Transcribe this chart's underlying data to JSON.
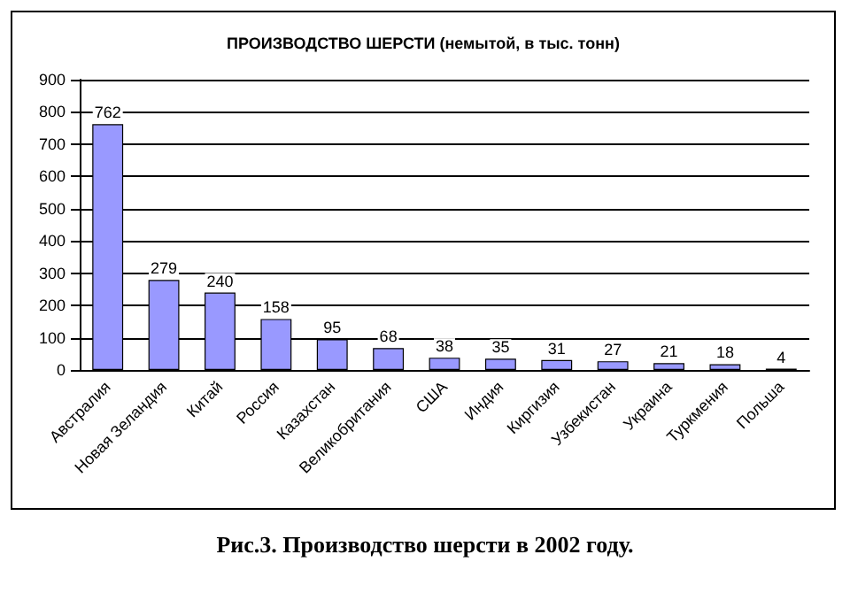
{
  "chart_data": {
    "type": "bar",
    "title": "ПРОИЗВОДСТВО ШЕРСТИ (немытой, в тыс. тонн)",
    "categories": [
      "Австралия",
      "Новая Зеландия",
      "Китай",
      "Россия",
      "Казахстан",
      "Великобритания",
      "США",
      "Индия",
      "Киргизия",
      "Узбекистан",
      "Украина",
      "Туркмения",
      "Польша"
    ],
    "values": [
      762,
      279,
      240,
      158,
      95,
      68,
      38,
      35,
      31,
      27,
      21,
      18,
      4
    ],
    "color": "#9999ff",
    "ylim": [
      0,
      900
    ],
    "yticks": [
      0,
      100,
      200,
      300,
      400,
      500,
      600,
      700,
      800,
      900
    ],
    "grid": "y",
    "data_labels": true,
    "annotations": [
      "Рис.3. Производство шерсти в 2002 году."
    ]
  }
}
